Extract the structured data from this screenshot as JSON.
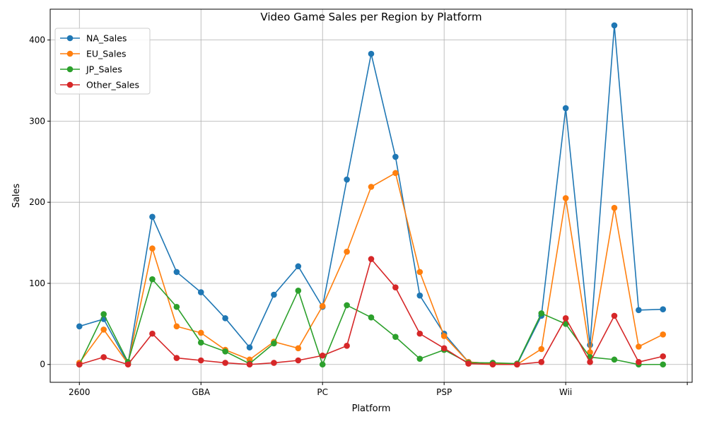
{
  "chart_data": {
    "type": "line",
    "title": "Video Game Sales per Region by Platform",
    "xlabel": "Platform",
    "ylabel": "Sales",
    "x_count": 25,
    "xtick_positions": [
      0,
      5,
      10,
      15,
      20,
      25
    ],
    "xtick_labels": [
      "2600",
      "GBA",
      "PC",
      "PSP",
      "Wii",
      ""
    ],
    "yticks": [
      0,
      100,
      200,
      300,
      400
    ],
    "ylim": [
      -22,
      438
    ],
    "xlim": [
      -1.2,
      25.2
    ],
    "grid": true,
    "legend_position": "top-left",
    "series": [
      {
        "name": "NA_Sales",
        "color": "#1f77b4",
        "values": [
          47,
          56,
          1,
          182,
          114,
          89,
          57,
          21,
          86,
          121,
          71,
          228,
          383,
          256,
          85,
          38,
          3,
          1,
          0,
          60,
          316,
          24,
          418,
          67,
          68
        ]
      },
      {
        "name": "EU_Sales",
        "color": "#ff7f0e",
        "values": [
          2,
          43,
          1,
          143,
          47,
          39,
          18,
          6,
          28,
          20,
          72,
          139,
          219,
          236,
          114,
          35,
          3,
          1,
          0,
          19,
          205,
          15,
          193,
          22,
          37
        ]
      },
      {
        "name": "JP_Sales",
        "color": "#2ca02c",
        "values": [
          0,
          62,
          3,
          105,
          71,
          27,
          16,
          1,
          26,
          91,
          0,
          73,
          58,
          34,
          7,
          18,
          2,
          2,
          1,
          63,
          50,
          9,
          6,
          0,
          0
        ]
      },
      {
        "name": "Other_Sales",
        "color": "#d62728",
        "values": [
          0,
          9,
          0,
          38,
          8,
          5,
          2,
          0,
          2,
          5,
          11,
          23,
          130,
          95,
          38,
          20,
          1,
          0,
          0,
          3,
          57,
          3,
          60,
          3,
          10
        ]
      }
    ]
  }
}
